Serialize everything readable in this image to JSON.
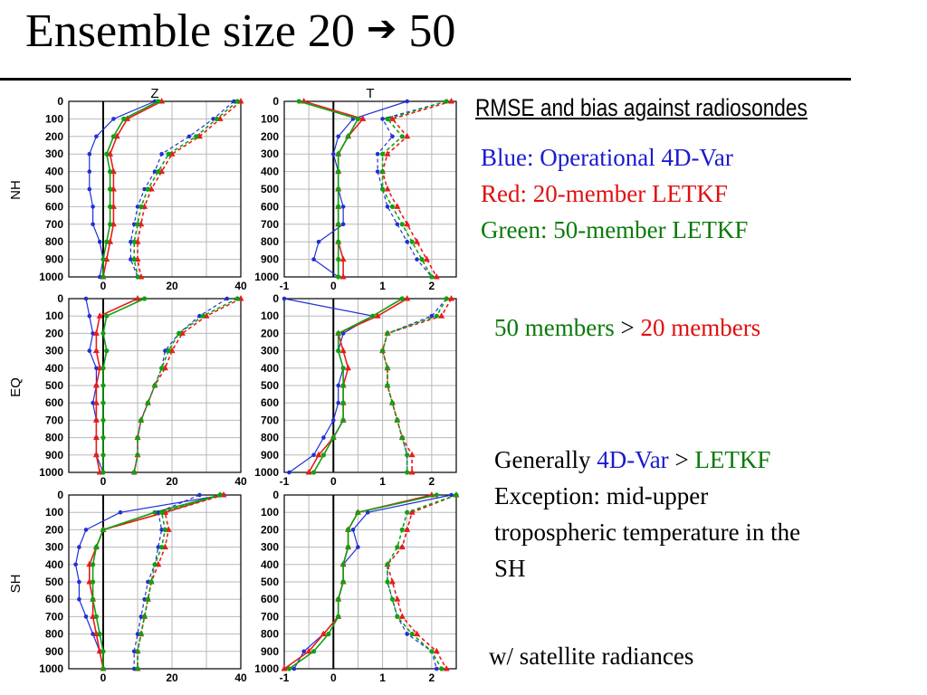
{
  "slide": {
    "title_prefix": "Ensemble size 20",
    "title_arrow": "➔",
    "title_suffix": "50",
    "subtitle": "RMSE and bias against radiosondes",
    "legend": {
      "blue": "Blue: Operational 4D-Var",
      "red": "Red: 20-member LETKF",
      "green": "Green: 50-member LETKF"
    },
    "statement1": {
      "a": "50 members",
      "op": " > ",
      "b": "20 members"
    },
    "statement2": {
      "prefix": "Generally ",
      "a": "4D-Var",
      "op": " > ",
      "b": "LETKF",
      "line2": "Exception: mid-upper",
      "line3": "tropospheric temperature in the",
      "line4": "SH"
    },
    "note": "w/ satellite radiances"
  },
  "colors": {
    "blue": "#1f2fd6",
    "red": "#e81c1c",
    "green": "#10a010",
    "text_blue": "#1a1ad0",
    "text_red": "#e01010",
    "text_green": "#0a7a0a"
  },
  "chart_data": [
    {
      "type": "line",
      "region": "NH",
      "variable": "Z",
      "col_title": "Z",
      "row_label": "NH",
      "x_ticks": [
        "0",
        "20",
        "40"
      ],
      "xlim": [
        -10,
        40
      ],
      "y": [
        0,
        100,
        200,
        300,
        400,
        500,
        600,
        700,
        800,
        900,
        1000
      ],
      "y_ticks": [
        "0",
        "100",
        "200",
        "300",
        "400",
        "500",
        "600",
        "700",
        "800",
        "900",
        "1000"
      ],
      "series": [
        {
          "color": "blue",
          "kind": "bias",
          "values": [
            15,
            3,
            -2,
            -4,
            -4,
            -4,
            -3,
            -3,
            -1,
            0,
            -1
          ]
        },
        {
          "color": "red",
          "kind": "bias",
          "values": [
            17,
            7,
            4,
            2,
            3,
            3,
            3,
            3,
            2,
            1,
            0
          ]
        },
        {
          "color": "green",
          "kind": "bias",
          "values": [
            16,
            6,
            3,
            1,
            2,
            2,
            2,
            2,
            1,
            0,
            0
          ]
        },
        {
          "color": "blue",
          "kind": "rmse",
          "values": [
            38,
            32,
            25,
            17,
            15,
            12,
            10,
            9,
            8,
            8,
            10
          ]
        },
        {
          "color": "red",
          "kind": "rmse",
          "values": [
            40,
            34,
            28,
            20,
            17,
            14,
            12,
            11,
            10,
            10,
            11
          ]
        },
        {
          "color": "green",
          "kind": "rmse",
          "values": [
            39,
            33,
            27,
            19,
            16,
            13,
            11,
            10,
            9,
            9,
            10
          ]
        }
      ]
    },
    {
      "type": "line",
      "region": "NH",
      "variable": "T",
      "col_title": "T",
      "row_label": "",
      "x_ticks": [
        "-1",
        "0",
        "1",
        "2"
      ],
      "xlim": [
        -1,
        2.5
      ],
      "y": [
        0,
        100,
        200,
        300,
        400,
        500,
        600,
        700,
        800,
        900,
        1000
      ],
      "y_ticks": [
        "0",
        "100",
        "200",
        "300",
        "400",
        "500",
        "600",
        "700",
        "800",
        "900",
        "1000"
      ],
      "series": [
        {
          "color": "blue",
          "kind": "bias",
          "values": [
            1.5,
            0.4,
            0.1,
            0.0,
            0.1,
            0.1,
            0.2,
            0.2,
            -0.3,
            -0.4,
            0.1
          ]
        },
        {
          "color": "red",
          "kind": "bias",
          "values": [
            -0.6,
            0.6,
            0.3,
            0.1,
            0.1,
            0.1,
            0.1,
            0.1,
            0.1,
            0.2,
            0.2
          ]
        },
        {
          "color": "green",
          "kind": "bias",
          "values": [
            -0.7,
            0.5,
            0.3,
            0.1,
            0.1,
            0.1,
            0.1,
            0.1,
            0.1,
            0.1,
            0.1
          ]
        },
        {
          "color": "blue",
          "kind": "rmse",
          "values": [
            2.3,
            1.0,
            1.2,
            0.9,
            0.9,
            1.0,
            1.1,
            1.3,
            1.5,
            1.7,
            2.0
          ]
        },
        {
          "color": "red",
          "kind": "rmse",
          "values": [
            2.4,
            1.2,
            1.5,
            1.1,
            1.0,
            1.1,
            1.3,
            1.5,
            1.7,
            1.9,
            2.1
          ]
        },
        {
          "color": "green",
          "kind": "rmse",
          "values": [
            2.3,
            1.1,
            1.4,
            1.0,
            1.0,
            1.0,
            1.2,
            1.4,
            1.6,
            1.8,
            2.0
          ]
        }
      ]
    },
    {
      "type": "line",
      "region": "EQ",
      "variable": "Z",
      "col_title": "",
      "row_label": "EQ",
      "x_ticks": [
        "0",
        "20",
        "40"
      ],
      "xlim": [
        -10,
        40
      ],
      "y": [
        0,
        100,
        200,
        300,
        400,
        500,
        600,
        700,
        800,
        900,
        1000
      ],
      "y_ticks": [
        "0",
        "100",
        "200",
        "300",
        "400",
        "500",
        "600",
        "700",
        "800",
        "900",
        "1000"
      ],
      "series": [
        {
          "color": "blue",
          "kind": "bias",
          "values": [
            -5,
            -4,
            -3,
            -4,
            -2,
            -2,
            -3,
            -2,
            -2,
            -2,
            0
          ]
        },
        {
          "color": "red",
          "kind": "bias",
          "values": [
            10,
            -1,
            -2,
            -2,
            -1,
            -2,
            -2,
            -2,
            -2,
            -2,
            -1
          ]
        },
        {
          "color": "green",
          "kind": "bias",
          "values": [
            12,
            1,
            0,
            1,
            0,
            0,
            0,
            0,
            0,
            0,
            0
          ]
        },
        {
          "color": "blue",
          "kind": "rmse",
          "values": [
            36,
            28,
            22,
            18,
            17,
            15,
            13,
            11,
            10,
            10,
            9
          ]
        },
        {
          "color": "red",
          "kind": "rmse",
          "values": [
            40,
            30,
            23,
            20,
            18,
            15,
            13,
            11,
            10,
            10,
            9
          ]
        },
        {
          "color": "green",
          "kind": "rmse",
          "values": [
            39,
            29,
            22,
            19,
            17,
            15,
            13,
            11,
            10,
            10,
            9
          ]
        }
      ]
    },
    {
      "type": "line",
      "region": "EQ",
      "variable": "T",
      "col_title": "",
      "row_label": "",
      "x_ticks": [
        "-1",
        "0",
        "1",
        "2"
      ],
      "xlim": [
        -1,
        2.5
      ],
      "y": [
        0,
        100,
        200,
        300,
        400,
        500,
        600,
        700,
        800,
        900,
        1000
      ],
      "y_ticks": [
        "0",
        "100",
        "200",
        "300",
        "400",
        "500",
        "600",
        "700",
        "800",
        "900",
        "1000"
      ],
      "series": [
        {
          "color": "blue",
          "kind": "bias",
          "values": [
            -1.0,
            0.8,
            0.2,
            0.1,
            0.2,
            0.1,
            0.1,
            0.0,
            -0.2,
            -0.4,
            -0.9
          ]
        },
        {
          "color": "red",
          "kind": "bias",
          "values": [
            1.5,
            0.9,
            0.1,
            0.2,
            0.3,
            0.2,
            0.2,
            0.2,
            0.0,
            -0.3,
            -0.5
          ]
        },
        {
          "color": "green",
          "kind": "bias",
          "values": [
            1.4,
            0.8,
            0.1,
            0.1,
            0.2,
            0.2,
            0.2,
            0.2,
            0.0,
            -0.2,
            -0.4
          ]
        },
        {
          "color": "blue",
          "kind": "rmse",
          "values": [
            2.3,
            2.0,
            1.1,
            1.0,
            1.1,
            1.1,
            1.2,
            1.3,
            1.4,
            1.5,
            1.5
          ]
        },
        {
          "color": "red",
          "kind": "rmse",
          "values": [
            2.4,
            2.2,
            1.1,
            1.0,
            1.1,
            1.1,
            1.2,
            1.3,
            1.4,
            1.6,
            1.6
          ]
        },
        {
          "color": "green",
          "kind": "rmse",
          "values": [
            2.3,
            2.1,
            1.1,
            1.0,
            1.1,
            1.1,
            1.2,
            1.3,
            1.4,
            1.5,
            1.5
          ]
        }
      ]
    },
    {
      "type": "line",
      "region": "SH",
      "variable": "Z",
      "col_title": "",
      "row_label": "SH",
      "x_ticks": [
        "0",
        "20",
        "40"
      ],
      "xlim": [
        -10,
        40
      ],
      "y": [
        0,
        100,
        200,
        300,
        400,
        500,
        600,
        700,
        800,
        900,
        1000
      ],
      "y_ticks": [
        "0",
        "100",
        "200",
        "300",
        "400",
        "500",
        "600",
        "700",
        "800",
        "900",
        "1000"
      ],
      "series": [
        {
          "color": "blue",
          "kind": "bias",
          "values": [
            35,
            5,
            -5,
            -7,
            -8,
            -7,
            -7,
            -5,
            -3,
            -1,
            0
          ]
        },
        {
          "color": "red",
          "kind": "bias",
          "values": [
            34,
            18,
            0,
            -2,
            -4,
            -4,
            -3,
            -3,
            -2,
            -1,
            0
          ]
        },
        {
          "color": "green",
          "kind": "bias",
          "values": [
            34,
            15,
            0,
            -2,
            -3,
            -3,
            -3,
            -2,
            -1,
            0,
            0
          ]
        },
        {
          "color": "blue",
          "kind": "rmse",
          "values": [
            28,
            16,
            17,
            16,
            15,
            13,
            12,
            11,
            10,
            9,
            9
          ]
        },
        {
          "color": "red",
          "kind": "rmse",
          "values": [
            35,
            18,
            19,
            18,
            16,
            14,
            13,
            12,
            11,
            10,
            10
          ]
        },
        {
          "color": "green",
          "kind": "rmse",
          "values": [
            34,
            17,
            18,
            17,
            15,
            14,
            13,
            12,
            11,
            10,
            10
          ]
        }
      ]
    },
    {
      "type": "line",
      "region": "SH",
      "variable": "T",
      "col_title": "",
      "row_label": "",
      "x_ticks": [
        "-1",
        "0",
        "1",
        "2"
      ],
      "xlim": [
        -1,
        2.5
      ],
      "y": [
        0,
        100,
        200,
        300,
        400,
        500,
        600,
        700,
        800,
        900,
        1000
      ],
      "y_ticks": [
        "0",
        "100",
        "200",
        "300",
        "400",
        "500",
        "600",
        "700",
        "800",
        "900",
        "1000"
      ],
      "series": [
        {
          "color": "blue",
          "kind": "bias",
          "values": [
            2.4,
            0.7,
            0.4,
            0.5,
            0.2,
            0.2,
            0.1,
            0.1,
            -0.2,
            -0.6,
            -0.8
          ]
        },
        {
          "color": "red",
          "kind": "bias",
          "values": [
            2.0,
            0.5,
            0.3,
            0.3,
            0.2,
            0.2,
            0.1,
            0.1,
            -0.2,
            -0.5,
            -1.0
          ]
        },
        {
          "color": "green",
          "kind": "bias",
          "values": [
            2.1,
            0.5,
            0.3,
            0.3,
            0.2,
            0.2,
            0.1,
            0.1,
            -0.1,
            -0.4,
            -0.9
          ]
        },
        {
          "color": "blue",
          "kind": "rmse",
          "values": [
            2.5,
            1.6,
            1.5,
            1.4,
            1.1,
            1.1,
            1.2,
            1.3,
            1.5,
            2.0,
            2.1
          ]
        },
        {
          "color": "red",
          "kind": "rmse",
          "values": [
            2.5,
            1.6,
            1.5,
            1.4,
            1.1,
            1.2,
            1.3,
            1.4,
            1.7,
            2.1,
            2.3
          ]
        },
        {
          "color": "green",
          "kind": "rmse",
          "values": [
            2.5,
            1.5,
            1.4,
            1.3,
            1.1,
            1.1,
            1.2,
            1.3,
            1.6,
            2.0,
            2.2
          ]
        }
      ]
    }
  ]
}
